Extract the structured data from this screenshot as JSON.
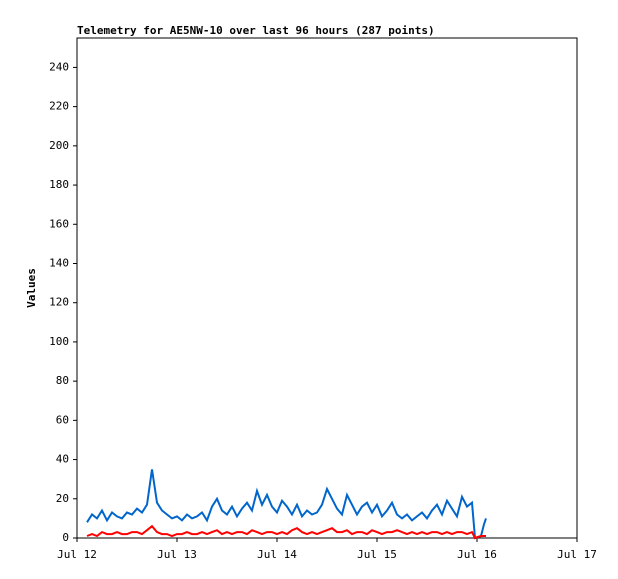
{
  "chart_data": {
    "type": "line",
    "title": "Telemetry for AE5NW-10 over last 96 hours (287 points)",
    "y_label": "Values",
    "x": [
      12.1,
      12.15,
      12.2,
      12.25,
      12.3,
      12.35,
      12.4,
      12.45,
      12.5,
      12.55,
      12.6,
      12.65,
      12.7,
      12.75,
      12.8,
      12.85,
      12.9,
      12.95,
      13.0,
      13.05,
      13.1,
      13.15,
      13.2,
      13.25,
      13.3,
      13.35,
      13.4,
      13.45,
      13.5,
      13.55,
      13.6,
      13.65,
      13.7,
      13.75,
      13.8,
      13.85,
      13.9,
      13.95,
      14.0,
      14.05,
      14.1,
      14.15,
      14.2,
      14.25,
      14.3,
      14.35,
      14.4,
      14.45,
      14.5,
      14.55,
      14.6,
      14.65,
      14.7,
      14.75,
      14.8,
      14.85,
      14.9,
      14.95,
      15.0,
      15.05,
      15.1,
      15.15,
      15.2,
      15.25,
      15.3,
      15.35,
      15.4,
      15.45,
      15.5,
      15.55,
      15.6,
      15.65,
      15.7,
      15.75,
      15.8,
      15.85,
      15.9,
      15.95,
      15.98,
      16.04,
      16.07,
      16.09
    ],
    "series": [
      {
        "color": "#0066cc",
        "values": [
          8,
          12,
          10,
          14,
          9,
          13,
          11,
          10,
          13,
          12,
          15,
          13,
          17,
          35,
          18,
          14,
          12,
          10,
          11,
          9,
          12,
          10,
          11,
          13,
          9,
          16,
          20,
          14,
          12,
          16,
          11,
          15,
          18,
          14,
          24,
          17,
          22,
          16,
          13,
          19,
          16,
          12,
          17,
          11,
          14,
          12,
          13,
          17,
          25,
          20,
          15,
          12,
          22,
          17,
          12,
          16,
          18,
          13,
          17,
          11,
          14,
          18,
          12,
          10,
          12,
          9,
          11,
          13,
          10,
          14,
          17,
          12,
          19,
          15,
          11,
          21,
          16,
          18,
          0,
          1,
          7,
          10
        ]
      },
      {
        "color": "#ff0000",
        "values": [
          1,
          2,
          1,
          3,
          2,
          2,
          3,
          2,
          2,
          3,
          3,
          2,
          4,
          6,
          3,
          2,
          2,
          1,
          2,
          2,
          3,
          2,
          2,
          3,
          2,
          3,
          4,
          2,
          3,
          2,
          3,
          3,
          2,
          4,
          3,
          2,
          3,
          3,
          2,
          3,
          2,
          4,
          5,
          3,
          2,
          3,
          2,
          3,
          4,
          5,
          3,
          3,
          4,
          2,
          3,
          3,
          2,
          4,
          3,
          2,
          3,
          3,
          4,
          3,
          2,
          3,
          2,
          3,
          2,
          3,
          3,
          2,
          3,
          2,
          3,
          3,
          2,
          3,
          0,
          1,
          1,
          1
        ]
      }
    ],
    "xlim": [
      12,
      17
    ],
    "xticks": [
      {
        "value": 12,
        "label": "Jul 12"
      },
      {
        "value": 13,
        "label": "Jul 13"
      },
      {
        "value": 14,
        "label": "Jul 14"
      },
      {
        "value": 15,
        "label": "Jul 15"
      },
      {
        "value": 16,
        "label": "Jul 16"
      },
      {
        "value": 17,
        "label": "Jul 17"
      }
    ],
    "ylim": [
      0,
      255
    ],
    "yticks": [
      0,
      20,
      40,
      60,
      80,
      100,
      120,
      140,
      160,
      180,
      200,
      220,
      240
    ]
  }
}
